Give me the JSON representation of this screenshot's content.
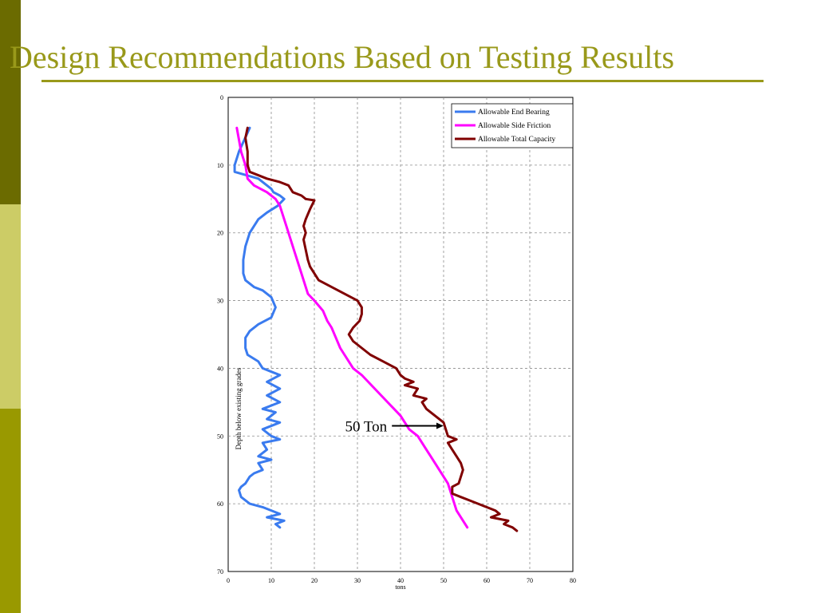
{
  "slide": {
    "title": "Design Recommendations Based on Testing Results"
  },
  "chart_data": {
    "type": "line",
    "title": "",
    "xlabel": "tons",
    "ylabel": "Depth below existing grades",
    "xlim": [
      0,
      80
    ],
    "ylim": [
      0,
      70
    ],
    "y_inverted": true,
    "x_ticks": [
      0,
      10,
      20,
      30,
      40,
      50,
      60,
      70,
      80
    ],
    "y_ticks": [
      0,
      10,
      20,
      30,
      40,
      50,
      60,
      70
    ],
    "grid": true,
    "legend_position": "top-right",
    "annotation": {
      "text": "50 Ton",
      "arrow_from": [
        38,
        48.5
      ],
      "arrow_to": [
        50,
        48.5
      ]
    },
    "series": [
      {
        "name": "Allowable End Bearing",
        "color": "#3a7bef",
        "points": [
          [
            5,
            4.5
          ],
          [
            2.5,
            8
          ],
          [
            1.5,
            10
          ],
          [
            1.5,
            11
          ],
          [
            7,
            12
          ],
          [
            9,
            13
          ],
          [
            10,
            13.5
          ],
          [
            10.5,
            14
          ],
          [
            12,
            14.5
          ],
          [
            13,
            15
          ],
          [
            11.5,
            16
          ],
          [
            9,
            17
          ],
          [
            7,
            18
          ],
          [
            5,
            20
          ],
          [
            4,
            22
          ],
          [
            3.5,
            24
          ],
          [
            3.5,
            26
          ],
          [
            4,
            27
          ],
          [
            6,
            28
          ],
          [
            8,
            28.5
          ],
          [
            10,
            29.5
          ],
          [
            11,
            31
          ],
          [
            10,
            32.5
          ],
          [
            7,
            33.5
          ],
          [
            5,
            34.5
          ],
          [
            4,
            35.5
          ],
          [
            4,
            37
          ],
          [
            4.5,
            38
          ],
          [
            7,
            39
          ],
          [
            8,
            40
          ],
          [
            10,
            40.5
          ],
          [
            12,
            41
          ],
          [
            9,
            42
          ],
          [
            12,
            43
          ],
          [
            9,
            44
          ],
          [
            12,
            45
          ],
          [
            8,
            46
          ],
          [
            11,
            46.5
          ],
          [
            9,
            47.5
          ],
          [
            12,
            48
          ],
          [
            8,
            49
          ],
          [
            10,
            50
          ],
          [
            12,
            50.5
          ],
          [
            8,
            51
          ],
          [
            9,
            52
          ],
          [
            7,
            53
          ],
          [
            10,
            53.5
          ],
          [
            7,
            54
          ],
          [
            8,
            55
          ],
          [
            6,
            55.5
          ],
          [
            5,
            56
          ],
          [
            4,
            57
          ],
          [
            3,
            57.5
          ],
          [
            2.5,
            58
          ],
          [
            3,
            59
          ],
          [
            5,
            60
          ],
          [
            8,
            60.5
          ],
          [
            10,
            61
          ],
          [
            12,
            61.5
          ],
          [
            9,
            62
          ],
          [
            13,
            62.5
          ],
          [
            11,
            63
          ],
          [
            12,
            63.5
          ]
        ]
      },
      {
        "name": "Allowable Side Friction",
        "color": "#ff00ff",
        "points": [
          [
            2,
            4.5
          ],
          [
            3,
            8
          ],
          [
            4,
            10
          ],
          [
            4.5,
            12
          ],
          [
            6,
            13
          ],
          [
            9,
            14
          ],
          [
            11,
            15
          ],
          [
            12,
            16
          ],
          [
            12.5,
            17
          ],
          [
            13.5,
            19
          ],
          [
            14.5,
            21
          ],
          [
            15.5,
            23
          ],
          [
            16.5,
            25
          ],
          [
            17.5,
            27
          ],
          [
            18.5,
            29
          ],
          [
            20,
            30
          ],
          [
            22,
            31.5
          ],
          [
            23,
            33
          ],
          [
            24,
            34
          ],
          [
            25,
            35.5
          ],
          [
            26,
            37
          ],
          [
            27,
            38
          ],
          [
            28,
            39
          ],
          [
            29,
            40
          ],
          [
            31,
            41
          ],
          [
            32.5,
            42
          ],
          [
            34,
            43
          ],
          [
            35.5,
            44
          ],
          [
            37,
            45
          ],
          [
            38.5,
            46
          ],
          [
            40,
            47
          ],
          [
            41,
            48
          ],
          [
            42,
            49
          ],
          [
            44,
            50
          ],
          [
            45,
            51
          ],
          [
            46,
            52
          ],
          [
            47,
            53
          ],
          [
            48,
            54
          ],
          [
            49,
            55
          ],
          [
            50,
            56
          ],
          [
            51,
            57
          ],
          [
            51.5,
            58
          ],
          [
            52,
            59
          ],
          [
            52.5,
            60
          ],
          [
            53,
            61
          ],
          [
            54,
            62
          ],
          [
            55,
            63
          ],
          [
            55.5,
            63.5
          ]
        ]
      },
      {
        "name": "Allowable Total Capacity",
        "color": "#800000",
        "points": [
          [
            4.5,
            4.5
          ],
          [
            4,
            6
          ],
          [
            4.5,
            8
          ],
          [
            4.5,
            10
          ],
          [
            5,
            11
          ],
          [
            9,
            12
          ],
          [
            12,
            12.5
          ],
          [
            14,
            13
          ],
          [
            15,
            14
          ],
          [
            17,
            14.5
          ],
          [
            18,
            15
          ],
          [
            20,
            15.2
          ],
          [
            19,
            16.5
          ],
          [
            18,
            18
          ],
          [
            17.5,
            19
          ],
          [
            18,
            20
          ],
          [
            17.5,
            21
          ],
          [
            18,
            22.5
          ],
          [
            18.5,
            24
          ],
          [
            19,
            25
          ],
          [
            20,
            26
          ],
          [
            21,
            27
          ],
          [
            24,
            28
          ],
          [
            27,
            29
          ],
          [
            30,
            30
          ],
          [
            31,
            31
          ],
          [
            31,
            32
          ],
          [
            30.5,
            33
          ],
          [
            29,
            34
          ],
          [
            28,
            35
          ],
          [
            29,
            36
          ],
          [
            31,
            37
          ],
          [
            33,
            38
          ],
          [
            36,
            39
          ],
          [
            39,
            40
          ],
          [
            40,
            41
          ],
          [
            41,
            41.5
          ],
          [
            43,
            42
          ],
          [
            41,
            42.5
          ],
          [
            44,
            43
          ],
          [
            43,
            44
          ],
          [
            46,
            44.5
          ],
          [
            45,
            45
          ],
          [
            46,
            46
          ],
          [
            47,
            46.5
          ],
          [
            48,
            47
          ],
          [
            49,
            47.5
          ],
          [
            50,
            48
          ],
          [
            50.5,
            49
          ],
          [
            51,
            50
          ],
          [
            53,
            50.5
          ],
          [
            51,
            51
          ],
          [
            52,
            52
          ],
          [
            53,
            53
          ],
          [
            54,
            54
          ],
          [
            54.5,
            55
          ],
          [
            54,
            56
          ],
          [
            53.5,
            57
          ],
          [
            52,
            57.5
          ],
          [
            52,
            58.5
          ],
          [
            54,
            59
          ],
          [
            56,
            59.5
          ],
          [
            58,
            60
          ],
          [
            60,
            60.5
          ],
          [
            62,
            61
          ],
          [
            63,
            61.5
          ],
          [
            61,
            62
          ],
          [
            65,
            62.5
          ],
          [
            64,
            63
          ],
          [
            66,
            63.5
          ],
          [
            67,
            64
          ]
        ]
      }
    ]
  }
}
